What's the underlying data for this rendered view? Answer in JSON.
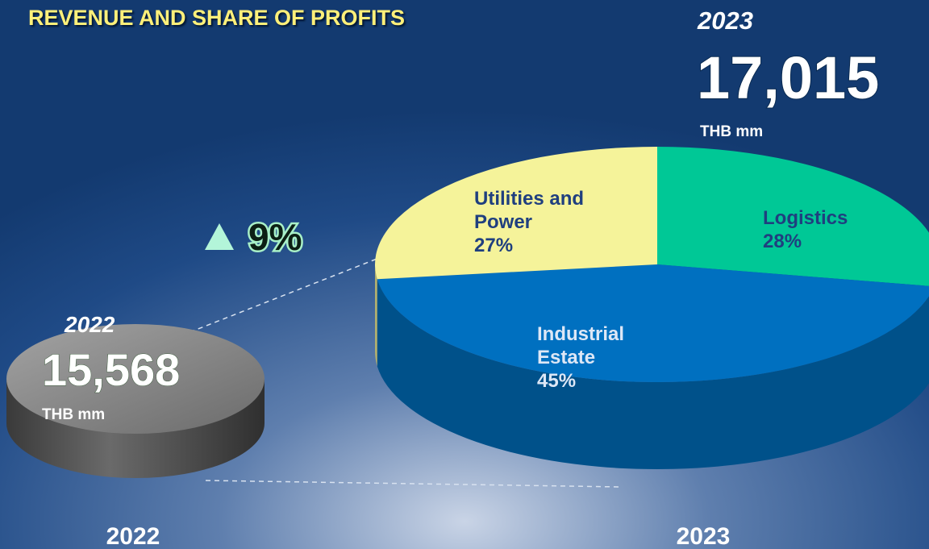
{
  "chart_data": {
    "type": "pie",
    "title": "REVENUE AND SHARE OF PROFITS",
    "categories": [
      "Logistics",
      "Industrial Estate",
      "Utilities and Power"
    ],
    "values": [
      28,
      45,
      27
    ],
    "value_labels": [
      "28%",
      "45%",
      "27%"
    ],
    "colors": [
      "#00c896",
      "#0070c0",
      "#f5f39a"
    ],
    "totals": [
      {
        "year": "2022",
        "total": "15,568",
        "unit": "THB mm"
      },
      {
        "year": "2023",
        "total": "17,015",
        "unit": "THB mm"
      }
    ],
    "growth": "9%"
  }
}
